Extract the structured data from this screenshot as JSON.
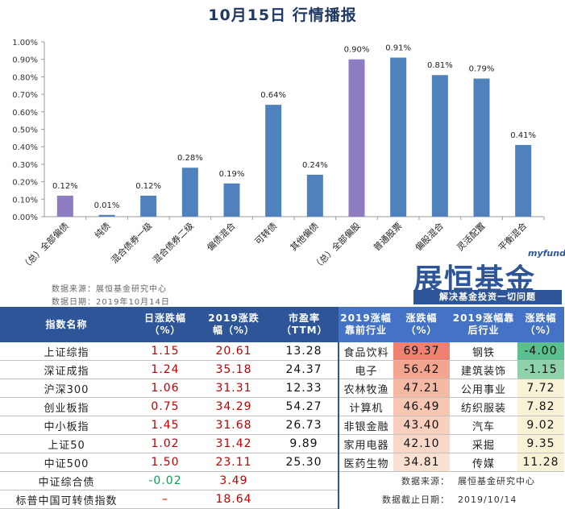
{
  "title": "10月15日 行情播报",
  "chart_data": {
    "type": "bar",
    "categories": [
      "（总）全部偏债",
      "纯债",
      "混合债券一级",
      "混合债券二级",
      "偏债混合",
      "可转债",
      "其他偏债",
      "（总）全部偏股",
      "普通股票",
      "偏股混合",
      "灵活配置",
      "平衡混合"
    ],
    "values": [
      0.12,
      0.01,
      0.12,
      0.28,
      0.19,
      0.64,
      0.24,
      0.9,
      0.91,
      0.81,
      0.79,
      0.41
    ],
    "value_labels": [
      "0.12%",
      "0.01%",
      "0.12%",
      "0.28%",
      "0.19%",
      "0.64%",
      "0.24%",
      "0.90%",
      "0.91%",
      "0.81%",
      "0.79%",
      "0.41%"
    ],
    "highlight": [
      true,
      false,
      false,
      false,
      false,
      false,
      false,
      true,
      false,
      false,
      false,
      false
    ],
    "y_ticks": [
      "0.00%",
      "0.10%",
      "0.20%",
      "0.30%",
      "0.40%",
      "0.50%",
      "0.60%",
      "0.70%",
      "0.80%",
      "0.90%",
      "1.00%"
    ],
    "ylim": [
      0,
      1.0
    ],
    "grid": false,
    "colors": {
      "bar": "#4f81bd",
      "highlight": "#8e7cc3"
    }
  },
  "source": {
    "line1": "数据来源：展恒基金研究中心",
    "line2": "数据日期：2019年10月14日"
  },
  "brand": {
    "small": "myfund",
    "main": "展恒基金",
    "slogan": "解决基金投资一切问题"
  },
  "table": {
    "headers": [
      "指数名称",
      "日涨跌幅（%）",
      "2019涨跌幅（%）",
      "市盈率（TTM）",
      "2019涨幅靠前行业",
      "涨跌幅（%）",
      "2019涨幅靠后行业",
      "涨跌幅（%）"
    ],
    "rows": [
      {
        "name": "上证综指",
        "day": "1.15",
        "ytd": "20.61",
        "pe": "13.28",
        "top_ind": "食品饮料",
        "top_chg": "69.37",
        "bot_ind": "钢铁",
        "bot_chg": "-4.00"
      },
      {
        "name": "深证成指",
        "day": "1.24",
        "ytd": "35.18",
        "pe": "24.37",
        "top_ind": "电子",
        "top_chg": "56.42",
        "bot_ind": "建筑装饰",
        "bot_chg": "-1.15"
      },
      {
        "name": "沪深300",
        "day": "1.06",
        "ytd": "31.31",
        "pe": "12.33",
        "top_ind": "农林牧渔",
        "top_chg": "47.21",
        "bot_ind": "公用事业",
        "bot_chg": "7.72"
      },
      {
        "name": "创业板指",
        "day": "0.75",
        "ytd": "34.29",
        "pe": "54.27",
        "top_ind": "计算机",
        "top_chg": "46.49",
        "bot_ind": "纺织服装",
        "bot_chg": "7.82"
      },
      {
        "name": "中小板指",
        "day": "1.45",
        "ytd": "31.68",
        "pe": "26.73",
        "top_ind": "非银金融",
        "top_chg": "43.40",
        "bot_ind": "汽车",
        "bot_chg": "9.02"
      },
      {
        "name": "上证50",
        "day": "1.02",
        "ytd": "31.42",
        "pe": "9.89",
        "top_ind": "家用电器",
        "top_chg": "42.10",
        "bot_ind": "采掘",
        "bot_chg": "9.35"
      },
      {
        "name": "中证500",
        "day": "1.50",
        "ytd": "23.11",
        "pe": "25.30",
        "top_ind": "医药生物",
        "top_chg": "34.81",
        "bot_ind": "传媒",
        "bot_chg": "11.28"
      }
    ],
    "extra_rows": [
      {
        "name": "中证综合债",
        "day": "-0.02",
        "ytd": "3.49",
        "note_label": "数据来源：",
        "note_value": "展恒基金研究中心"
      },
      {
        "name": "标普中国可转债指数",
        "day": "–",
        "ytd": "18.64",
        "note_label": "数据截止日期：",
        "note_value": "2019/10/14"
      }
    ],
    "heat_colors": {
      "top": [
        "#f08070",
        "#f4a58f",
        "#f6b9a3",
        "#f8c6b2",
        "#f9d0bd",
        "#fad8c7",
        "#fbe1d2"
      ],
      "bot": [
        "#5cbf8f",
        "#8ed1aa",
        "#f8f3d6",
        "#f8f3d6",
        "#f8f3d6",
        "#f8f3d6",
        "#f8f3d6"
      ]
    }
  }
}
